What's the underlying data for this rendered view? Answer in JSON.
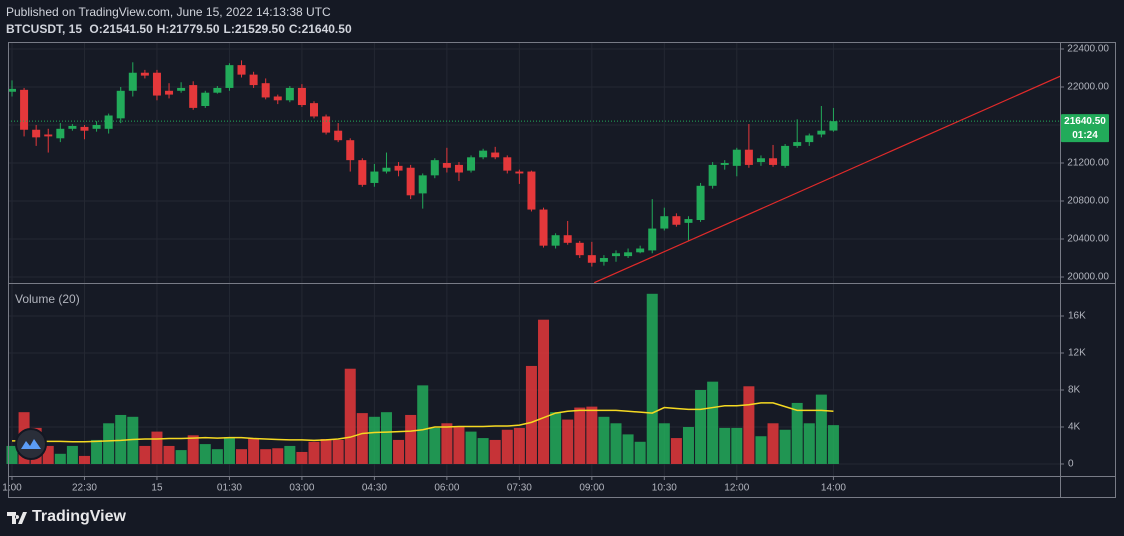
{
  "chart_data": {
    "type": "candlestick",
    "published": "Published on TradingView.com, June 15, 2022 14:13:38 UTC",
    "symbol": "BTCUSDT, 15",
    "ohlc_legend": [
      {
        "label": "O:",
        "value": "21541.50"
      },
      {
        "label": "H:",
        "value": "21779.50"
      },
      {
        "label": "L:",
        "value": "21529.50"
      },
      {
        "label": "C:",
        "value": "21640.50"
      }
    ],
    "categories": [
      "1:00",
      null,
      null,
      null,
      null,
      null,
      "22:30",
      null,
      null,
      null,
      null,
      null,
      "15",
      null,
      null,
      null,
      null,
      null,
      "01:30",
      null,
      null,
      null,
      null,
      null,
      "03:00",
      null,
      null,
      null,
      null,
      null,
      "04:30",
      null,
      null,
      null,
      null,
      null,
      "06:00",
      null,
      null,
      null,
      null,
      null,
      "07:30",
      null,
      null,
      null,
      null,
      null,
      "09:00",
      null,
      null,
      null,
      null,
      null,
      "10:30",
      null,
      null,
      null,
      null,
      null,
      "12:00",
      null,
      null,
      null,
      null,
      null,
      null,
      null,
      "14:00"
    ],
    "open": [
      21950,
      21970,
      21550,
      21500,
      21460,
      21560,
      21580,
      21560,
      21560,
      21670,
      21960,
      22150,
      22150,
      21960,
      21960,
      22020,
      21800,
      21940,
      21990,
      22230,
      22130,
      22040,
      21900,
      21860,
      21990,
      21830,
      21690,
      21540,
      21440,
      21230,
      20990,
      21110,
      21170,
      21150,
      20880,
      21070,
      21200,
      21180,
      21120,
      21260,
      21310,
      21260,
      21110,
      21110,
      20710,
      20330,
      20440,
      20360,
      20230,
      20160,
      20220,
      20220,
      20260,
      20280,
      20510,
      20640,
      20570,
      20600,
      20960,
      21180,
      21170,
      21340,
      21210,
      21250,
      21170,
      21380,
      21420,
      21500,
      21541.5
    ],
    "high": [
      22070,
      21990,
      21600,
      21560,
      21620,
      21610,
      21600,
      21640,
      21720,
      22000,
      22260,
      22180,
      22180,
      22040,
      22050,
      22060,
      21960,
      22010,
      22250,
      22280,
      22160,
      22090,
      21920,
      22010,
      22030,
      21850,
      21710,
      21620,
      21460,
      21250,
      21190,
      21310,
      21210,
      21180,
      21090,
      21250,
      21360,
      21210,
      21280,
      21350,
      21370,
      21280,
      21130,
      21120,
      20730,
      20460,
      20590,
      20380,
      20370,
      20230,
      20280,
      20300,
      20330,
      20820,
      20730,
      20670,
      20640,
      20990,
      21210,
      21230,
      21360,
      21610,
      21280,
      21390,
      21400,
      21660,
      21510,
      21800,
      21779.5
    ],
    "low": [
      21900,
      21480,
      21380,
      21310,
      21420,
      21540,
      21450,
      21530,
      21510,
      21620,
      21900,
      22090,
      21860,
      21880,
      21940,
      21760,
      21780,
      21930,
      21960,
      22100,
      21990,
      21870,
      21820,
      21840,
      21790,
      21670,
      21500,
      21420,
      21110,
      20950,
      20950,
      21090,
      21060,
      20820,
      20720,
      21040,
      21100,
      21010,
      21100,
      21240,
      21240,
      21090,
      20980,
      20690,
      20310,
      20300,
      20340,
      20200,
      20110,
      20120,
      20160,
      20200,
      20250,
      20250,
      20490,
      20530,
      20380,
      20580,
      20930,
      21130,
      21060,
      21150,
      21170,
      21160,
      21150,
      21360,
      21380,
      21470,
      21529.5
    ],
    "close": [
      21980,
      21550,
      21470,
      21480,
      21560,
      21590,
      21540,
      21600,
      21700,
      21960,
      22150,
      22120,
      21910,
      21920,
      21990,
      21780,
      21940,
      21990,
      22230,
      22130,
      22020,
      21890,
      21860,
      21990,
      21810,
      21690,
      21520,
      21440,
      21230,
      20970,
      21110,
      21150,
      21120,
      20860,
      21070,
      21230,
      21150,
      21100,
      21260,
      21330,
      21260,
      21120,
      21090,
      20710,
      20330,
      20440,
      20360,
      20230,
      20150,
      20200,
      20250,
      20260,
      20300,
      20510,
      20640,
      20550,
      20610,
      20960,
      21180,
      21200,
      21340,
      21180,
      21250,
      21180,
      21380,
      21420,
      21490,
      21540,
      21640.5
    ],
    "up_color": "#22ab5a",
    "down_color": "#e5383b",
    "ylim": [
      19937,
      22463
    ],
    "yticks": [
      {
        "value": 20000,
        "label": "20000.00"
      },
      {
        "value": 20400,
        "label": "20400.00"
      },
      {
        "value": 20800,
        "label": "20800.00"
      },
      {
        "value": 21200,
        "label": "21200.00"
      },
      {
        "value": 21600,
        "label": "21600.00"
      },
      {
        "value": 22000,
        "label": "22000.00"
      },
      {
        "value": 22400,
        "label": "22400.00"
      }
    ],
    "last_price": {
      "value": 21640.5,
      "label": "21640.50"
    },
    "countdown": "01:24",
    "trendline": {
      "x": [
        48.2,
        86.8
      ],
      "y": [
        19940,
        22115
      ],
      "color": "#e02a2a"
    },
    "grid": true,
    "volume": {
      "title": "Volume (20)",
      "values": [
        1950,
        5600,
        3900,
        1950,
        1100,
        1950,
        870,
        2600,
        4400,
        5300,
        5100,
        1950,
        3500,
        1950,
        1500,
        3100,
        2150,
        1600,
        2900,
        1600,
        2800,
        1600,
        1700,
        1950,
        1300,
        2400,
        2700,
        2600,
        10300,
        5500,
        5100,
        5600,
        2600,
        5300,
        8500,
        3900,
        4400,
        4100,
        3500,
        2800,
        2600,
        3700,
        3900,
        10600,
        15600,
        5600,
        4800,
        6100,
        6200,
        5100,
        4400,
        3200,
        2400,
        18400,
        4400,
        2800,
        4000,
        8000,
        8900,
        3900,
        3900,
        8400,
        3000,
        4400,
        3700,
        6600,
        4400,
        7500,
        4200
      ],
      "ma_values": [
        2500,
        2500,
        2450,
        2450,
        2450,
        2400,
        2400,
        2450,
        2500,
        2550,
        2650,
        2700,
        2700,
        2750,
        2750,
        2800,
        2850,
        2800,
        2850,
        2850,
        2750,
        2700,
        2650,
        2600,
        2600,
        2550,
        2600,
        2700,
        2900,
        3300,
        3400,
        3450,
        3500,
        3550,
        3700,
        4000,
        4000,
        4050,
        4050,
        4050,
        4100,
        4100,
        4200,
        4500,
        5000,
        5500,
        5700,
        5800,
        5800,
        5800,
        5800,
        5700,
        5600,
        5500,
        6100,
        6000,
        5900,
        5900,
        6100,
        6300,
        6300,
        6400,
        6600,
        6600,
        6200,
        5800,
        5800,
        5800,
        5700
      ],
      "ma_color": "#f5d922",
      "ylim": [
        -1300,
        19460
      ],
      "yticks": [
        0,
        {
          "value": 4000,
          "label": "4K"
        },
        {
          "value": 8000,
          "label": "8K"
        },
        {
          "value": 12000,
          "label": "12K"
        },
        {
          "value": 16000,
          "label": "16K"
        }
      ]
    },
    "brand": "TradingView"
  }
}
